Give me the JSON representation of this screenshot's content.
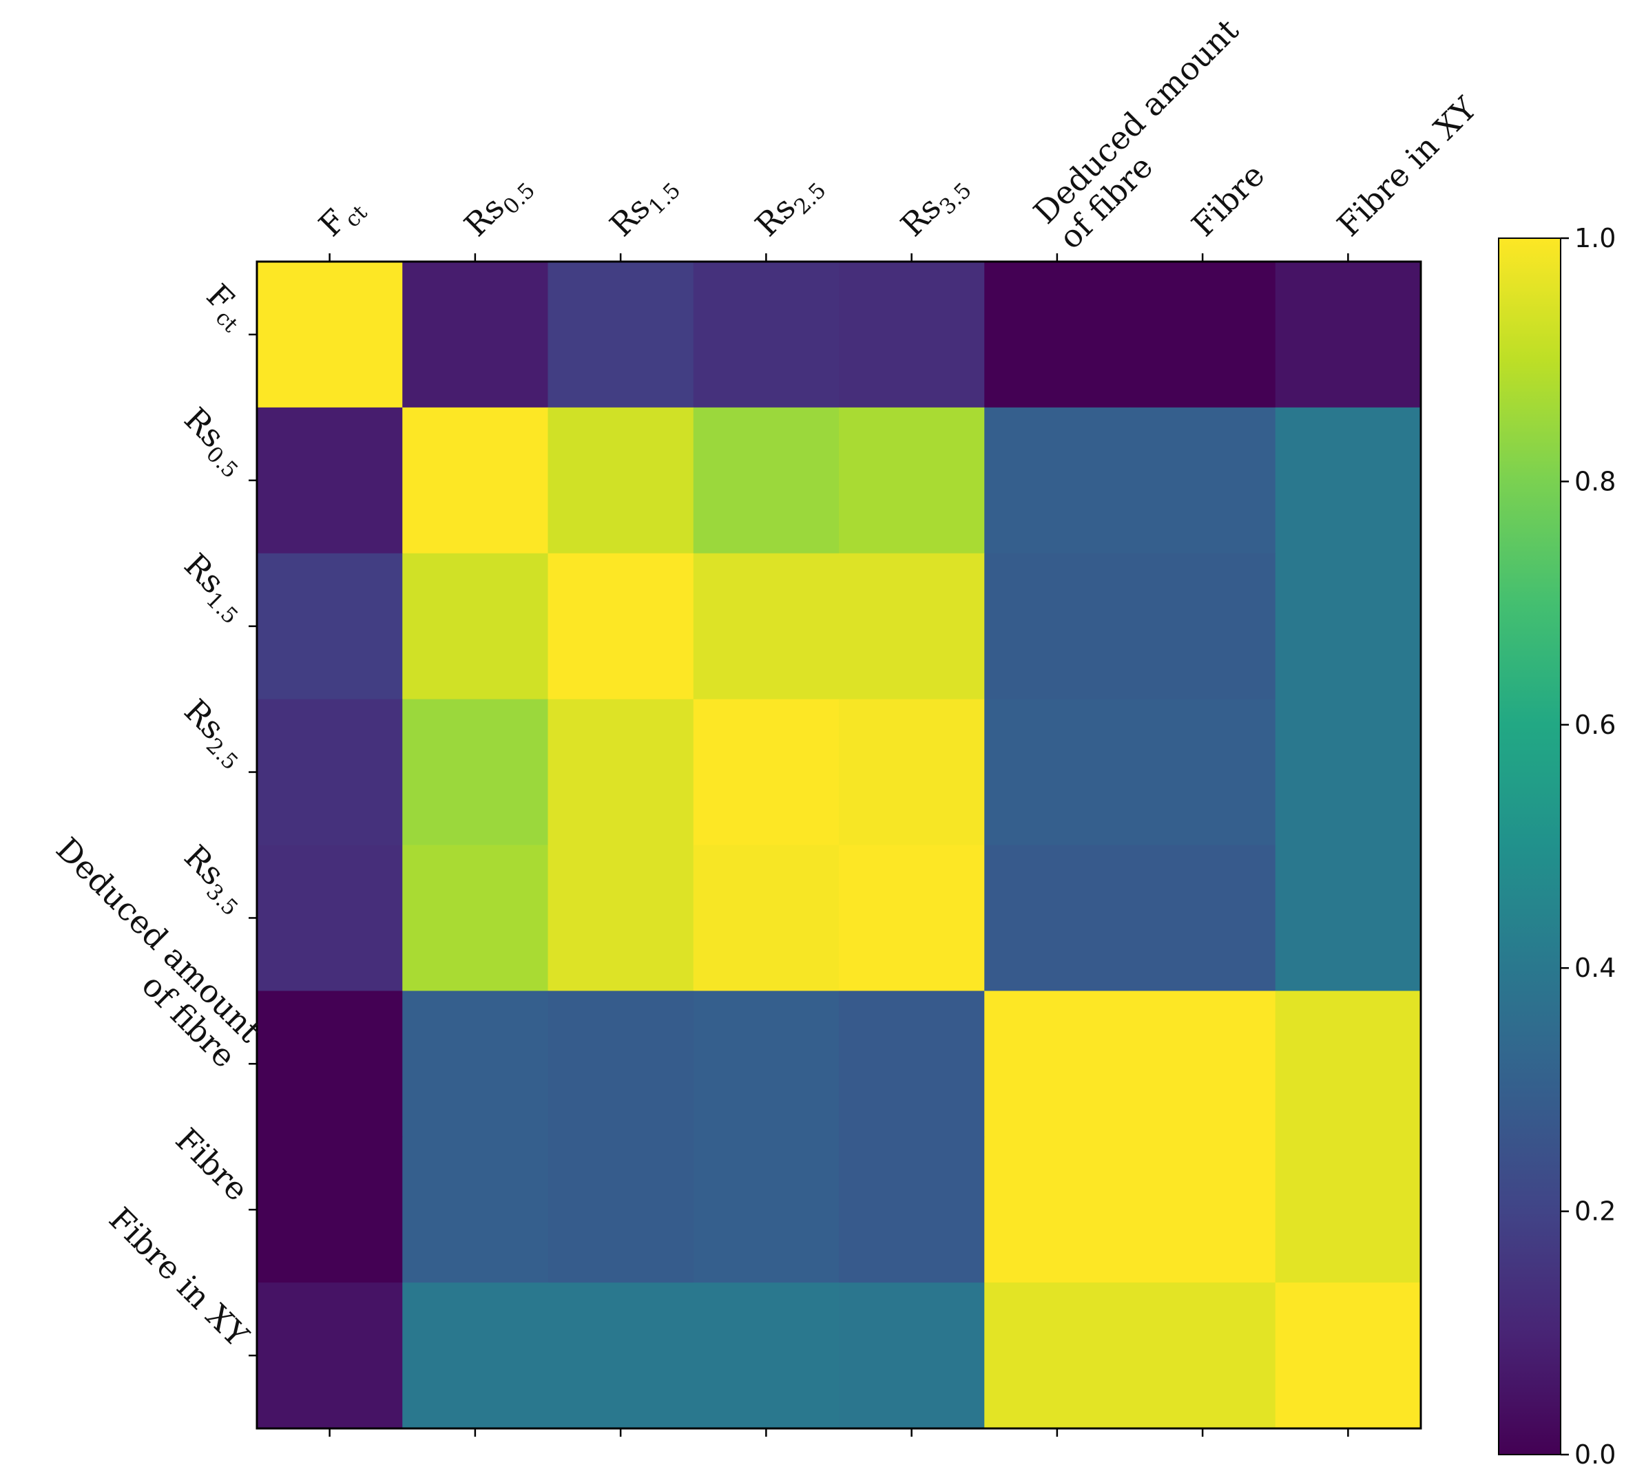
{
  "chart_data": {
    "type": "heatmap",
    "title": "",
    "variables": [
      {
        "base": "F",
        "sub": "ct"
      },
      {
        "base": "Rs",
        "sub": "0.5"
      },
      {
        "base": "Rs",
        "sub": "1.5"
      },
      {
        "base": "Rs",
        "sub": "2.5"
      },
      {
        "base": "Rs",
        "sub": "3.5"
      },
      {
        "lines": [
          "Deduced amount",
          "of fibre"
        ]
      },
      {
        "base": "Fibre"
      },
      {
        "base": "Fibre in XY"
      }
    ],
    "matrix": [
      [
        1.0,
        0.08,
        0.18,
        0.14,
        0.13,
        0.0,
        0.0,
        0.05
      ],
      [
        0.08,
        1.0,
        0.93,
        0.85,
        0.87,
        0.3,
        0.3,
        0.4
      ],
      [
        0.18,
        0.93,
        1.0,
        0.95,
        0.95,
        0.29,
        0.29,
        0.4
      ],
      [
        0.14,
        0.85,
        0.95,
        1.0,
        0.99,
        0.3,
        0.3,
        0.4
      ],
      [
        0.13,
        0.87,
        0.95,
        0.99,
        1.0,
        0.28,
        0.28,
        0.4
      ],
      [
        0.0,
        0.3,
        0.29,
        0.3,
        0.28,
        1.0,
        1.0,
        0.96
      ],
      [
        0.0,
        0.3,
        0.29,
        0.3,
        0.28,
        1.0,
        1.0,
        0.96
      ],
      [
        0.05,
        0.4,
        0.4,
        0.4,
        0.39,
        0.96,
        0.96,
        1.0
      ]
    ],
    "colormap": "viridis",
    "colorbar": {
      "range": [
        0.0,
        1.0
      ],
      "ticks": [
        0.0,
        0.2,
        0.4,
        0.6,
        0.8,
        1.0
      ],
      "tick_labels": [
        "0.0",
        "0.2",
        "0.4",
        "0.6",
        "0.8",
        "1.0"
      ]
    }
  }
}
